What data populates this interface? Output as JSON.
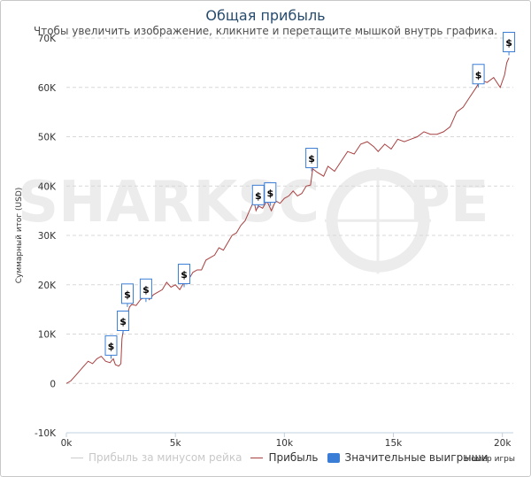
{
  "chart_data": {
    "type": "line",
    "title": "Общая прибыль",
    "subtitle": "Чтобы увеличить изображение, кликните и перетащите мышкой внутрь графика.",
    "xlabel": "Номер игры",
    "ylabel": "Суммарный итог (USD)",
    "xlim": [
      0,
      20500
    ],
    "ylim": [
      -10000,
      70000
    ],
    "x_ticks": [
      "0k",
      "5k",
      "10k",
      "15k",
      "20k"
    ],
    "x_tick_values": [
      0,
      5000,
      10000,
      15000,
      20000
    ],
    "y_ticks": [
      "-10K",
      "0",
      "10K",
      "20K",
      "30K",
      "40K",
      "50K",
      "60K",
      "70K"
    ],
    "y_tick_values": [
      -10000,
      0,
      10000,
      20000,
      30000,
      40000,
      50000,
      60000,
      70000
    ],
    "watermark": "SHARKSCOPE",
    "series": [
      {
        "name": "Прибыль",
        "color": "#a84040",
        "x": [
          0,
          200,
          400,
          600,
          800,
          1000,
          1200,
          1400,
          1600,
          1800,
          2000,
          2150,
          2250,
          2400,
          2500,
          2550,
          2600,
          2700,
          2800,
          2900,
          3000,
          3200,
          3400,
          3600,
          3700,
          3800,
          4000,
          4200,
          4400,
          4600,
          4800,
          5000,
          5200,
          5400,
          5500,
          5600,
          5800,
          6000,
          6200,
          6400,
          6600,
          6800,
          7000,
          7200,
          7400,
          7600,
          7800,
          8000,
          8200,
          8400,
          8600,
          8700,
          8800,
          9000,
          9200,
          9300,
          9400,
          9600,
          9800,
          10000,
          10200,
          10400,
          10600,
          10800,
          11000,
          11200,
          11300,
          11500,
          11800,
          12000,
          12300,
          12600,
          12900,
          13200,
          13500,
          13800,
          14100,
          14300,
          14600,
          14900,
          15200,
          15500,
          15800,
          16100,
          16400,
          16700,
          17000,
          17300,
          17600,
          17900,
          18200,
          18500,
          18800,
          19000,
          19300,
          19600,
          19900,
          20100,
          20200,
          20300
        ],
        "values": [
          0,
          500,
          1500,
          2500,
          3500,
          4500,
          4000,
          5000,
          5500,
          4500,
          4200,
          5000,
          3800,
          3500,
          4000,
          9000,
          10500,
          12000,
          14000,
          15500,
          16000,
          15800,
          17000,
          17500,
          18500,
          17000,
          18000,
          18500,
          19000,
          20500,
          19500,
          20000,
          19000,
          20500,
          22000,
          21000,
          22500,
          23000,
          23000,
          25000,
          25500,
          26000,
          27500,
          27000,
          28500,
          30000,
          30500,
          32000,
          33000,
          35000,
          37000,
          35000,
          36000,
          35500,
          37000,
          36000,
          35000,
          37000,
          36500,
          37500,
          38000,
          39000,
          38000,
          38500,
          40000,
          40200,
          43500,
          42800,
          42000,
          44000,
          43000,
          45000,
          47000,
          46500,
          48500,
          49000,
          48000,
          47000,
          48500,
          47500,
          49500,
          49000,
          49500,
          50000,
          51000,
          50500,
          50500,
          51000,
          52000,
          55000,
          56000,
          58000,
          60000,
          61500,
          61000,
          62000,
          60000,
          62500,
          65000,
          66000
        ]
      },
      {
        "name": "Прибыль за минусом рейка",
        "color": "#cccccc",
        "hidden": true
      }
    ],
    "big_wins": {
      "label": "Значительные выигрыши",
      "symbol": "$",
      "points": [
        {
          "x": 2050,
          "y": 5000
        },
        {
          "x": 2600,
          "y": 10000
        },
        {
          "x": 2800,
          "y": 15500
        },
        {
          "x": 3650,
          "y": 16500
        },
        {
          "x": 5400,
          "y": 19500
        },
        {
          "x": 8800,
          "y": 35500
        },
        {
          "x": 9350,
          "y": 36000
        },
        {
          "x": 11250,
          "y": 43000
        },
        {
          "x": 18900,
          "y": 60000
        },
        {
          "x": 20300,
          "y": 66500
        }
      ]
    },
    "legend": [
      {
        "label": "Прибыль за минусом рейка",
        "color": "#cccccc",
        "kind": "line",
        "hidden": true
      },
      {
        "label": "Прибыль",
        "color": "#a84040",
        "kind": "line"
      },
      {
        "label": "Значительные выигрыши",
        "color": "#3a7dd6",
        "kind": "box"
      }
    ]
  }
}
